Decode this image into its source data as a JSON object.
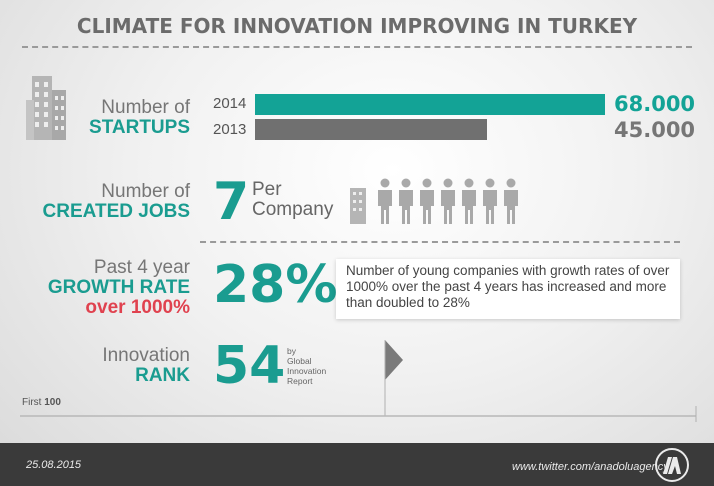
{
  "title": "CLIMATE FOR INNOVATION IMPROVING IN TURKEY",
  "startups": {
    "label_line1": "Number of",
    "label_line2": "STARTUPS"
  },
  "chart_data": {
    "type": "bar",
    "title": "",
    "categories": [
      "2014",
      "2013"
    ],
    "values": [
      68000,
      45000
    ],
    "value_labels": [
      "68.000",
      "45.000"
    ],
    "colors": [
      "#13a396",
      "#707070"
    ],
    "xlim": [
      0,
      68000
    ]
  },
  "jobs": {
    "label_line1": "Number of",
    "label_line2": "CREATED JOBS",
    "value": "7",
    "unit_line1": "Per",
    "unit_line2": "Company"
  },
  "growth": {
    "label_line1": "Past 4 year",
    "label_line2": "GROWTH RATE",
    "label_line3": "over 1000%",
    "value": "28%",
    "note": "Number of young companies with growth rates of over 1000% over the past 4 years has increased and more than doubled to 28%"
  },
  "innovation": {
    "label_line1": "Innovation",
    "label_line2": "RANK",
    "value": "54",
    "source_line1": "by",
    "source_line2": "Global",
    "source_line3": "Innovation",
    "source_line4": "Report"
  },
  "first_label": "First",
  "first_value": "100",
  "footer": {
    "date": "25.08.2015",
    "url": "www.twitter.com/anadoluagency"
  },
  "icons": {
    "buildings": "city-buildings-icon",
    "people": "people-icon",
    "arrow": "progress-arrow-icon",
    "logo": "anadolu-agency-logo"
  }
}
